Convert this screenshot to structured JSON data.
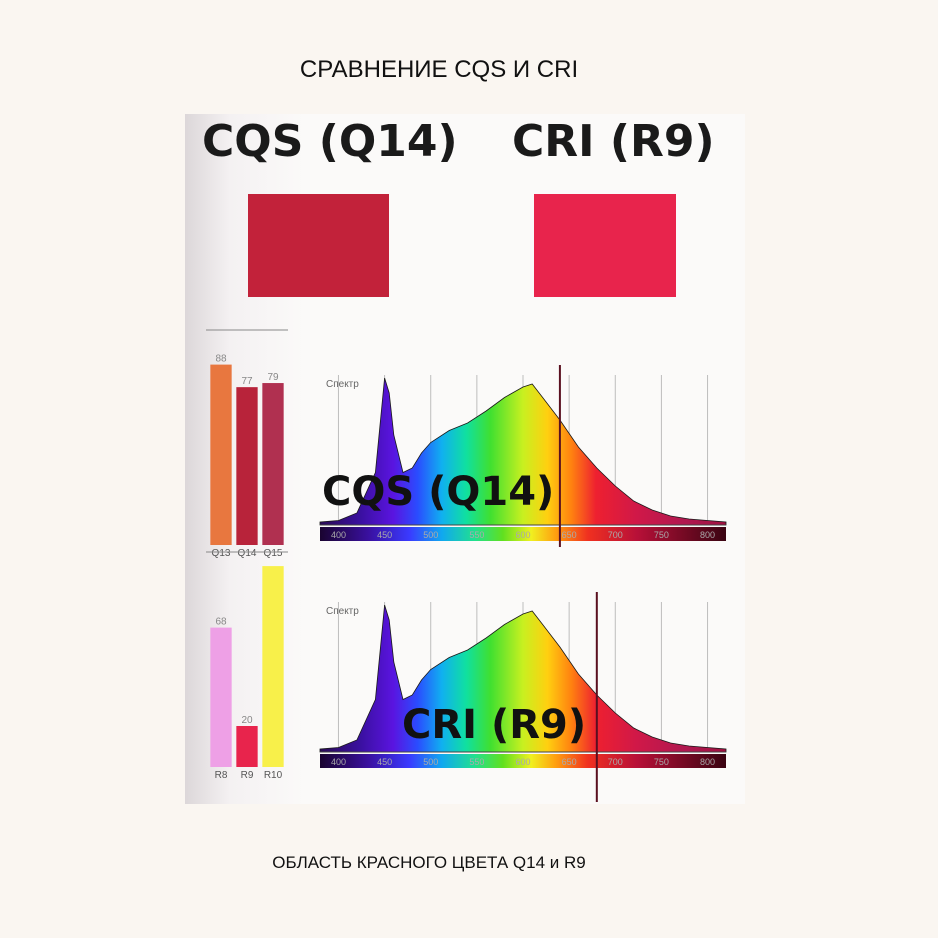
{
  "page": {
    "title": "СРАВНЕНИЕ CQS  И  CRI",
    "caption": "ОБЛАСТЬ КРАСНОГО ЦВЕТА  Q14 и R9"
  },
  "header": {
    "cqs_label": "CQS (Q14)",
    "cri_label": "CRI (R9)",
    "cqs_color": "#c2223a",
    "cri_color": "#e8244c"
  },
  "chart_data": [
    {
      "type": "bar",
      "categories": [
        "Q13",
        "Q14",
        "Q15"
      ],
      "values": [
        88,
        77,
        79
      ],
      "colors": [
        "#e8773f",
        "#b8233a",
        "#b03050"
      ],
      "ylim": [
        0,
        100
      ]
    },
    {
      "type": "area",
      "title": "Спектр",
      "overlay_label": "CQS (Q14)",
      "x": [
        380,
        400,
        420,
        440,
        450,
        455,
        460,
        470,
        480,
        490,
        500,
        520,
        540,
        560,
        580,
        600,
        610,
        620,
        640,
        660,
        680,
        700,
        720,
        740,
        760,
        780,
        800,
        820
      ],
      "values": [
        2,
        3,
        8,
        35,
        98,
        88,
        60,
        35,
        38,
        48,
        55,
        63,
        68,
        76,
        85,
        92,
        94,
        86,
        70,
        52,
        38,
        26,
        16,
        10,
        6,
        4,
        3,
        2
      ],
      "marker_x": 640,
      "xticks": [
        400,
        450,
        500,
        550,
        600,
        650,
        700,
        750,
        800
      ],
      "ylim": [
        0,
        100
      ]
    },
    {
      "type": "bar",
      "categories": [
        "R8",
        "R9",
        "R10"
      ],
      "values": [
        68,
        20,
        98
      ],
      "value_labels": [
        "68",
        "20",
        ""
      ],
      "colors": [
        "#eea0e6",
        "#e8244c",
        "#f8f04a"
      ],
      "ylim": [
        0,
        100
      ]
    },
    {
      "type": "area",
      "title": "Спектр",
      "overlay_label": "CRI (R9)",
      "x": [
        380,
        400,
        420,
        440,
        450,
        455,
        460,
        470,
        480,
        490,
        500,
        520,
        540,
        560,
        580,
        600,
        610,
        620,
        640,
        660,
        680,
        700,
        720,
        740,
        760,
        780,
        800,
        820
      ],
      "values": [
        2,
        3,
        8,
        35,
        98,
        88,
        60,
        35,
        38,
        48,
        55,
        63,
        68,
        76,
        85,
        92,
        94,
        86,
        70,
        52,
        38,
        26,
        16,
        10,
        6,
        4,
        3,
        2
      ],
      "marker_x": 680,
      "xticks": [
        400,
        450,
        500,
        550,
        600,
        650,
        700,
        750,
        800
      ],
      "ylim": [
        0,
        100
      ]
    }
  ]
}
